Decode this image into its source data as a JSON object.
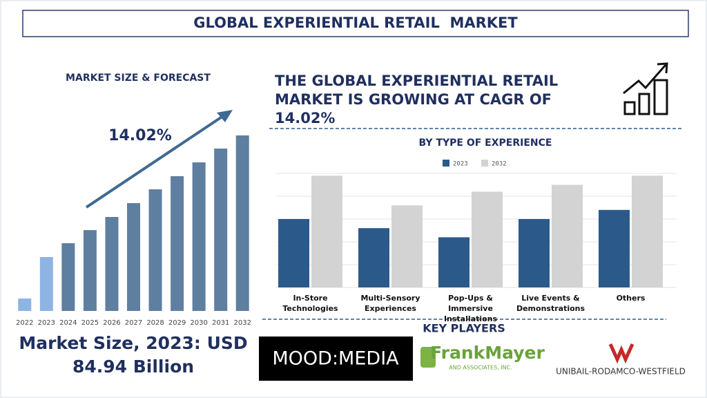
{
  "title": "GLOBAL EXPERIENTIAL RETAIL  MARKET",
  "headline": "THE GLOBAL EXPERIENTIAL RETAIL MARKET IS GROWING AT CAGR OF 14.02%",
  "market_size": "Market Size, 2023: USD 84.94 Billion",
  "key_players": {
    "title": "KEY PLAYERS",
    "logos": [
      {
        "name": "MOOD:MEDIA"
      },
      {
        "name": "FrankMayer",
        "subtitle": "AND ASSOCIATES, INC."
      },
      {
        "name": "UNIBAIL-RODAMCO-WESTFIELD"
      }
    ]
  },
  "chart_data": [
    {
      "type": "bar",
      "title": "MARKET SIZE & FORECAST",
      "annotation": "14.02%",
      "categories": [
        "2022",
        "2023",
        "2024",
        "2025",
        "2026",
        "2027",
        "2028",
        "2029",
        "2030",
        "2031",
        "2032"
      ],
      "values": [
        18,
        78,
        98,
        117,
        136,
        156,
        176,
        195,
        215,
        235,
        254
      ],
      "colors": [
        "#8db4e2",
        "#8db4e2",
        "#5f7fa0",
        "#5f7fa0",
        "#5f7fa0",
        "#5f7fa0",
        "#5f7fa0",
        "#5f7fa0",
        "#5f7fa0",
        "#5f7fa0",
        "#5f7fa0"
      ],
      "ylim": [
        0,
        260
      ]
    },
    {
      "type": "bar",
      "title": "BY TYPE OF EXPERIENCE",
      "categories": [
        "In-Store Technologies",
        "Multi-Sensory Experiences",
        "Pop-Ups & Immersive Installations",
        "Live Events & Demonstrations",
        "Others"
      ],
      "series": [
        {
          "name": "2023",
          "color": "#2b5a8a",
          "values": [
            3.0,
            2.6,
            2.2,
            3.0,
            3.4
          ]
        },
        {
          "name": "2032",
          "color": "#d3d3d3",
          "values": [
            4.9,
            3.6,
            4.2,
            4.5,
            4.9
          ]
        }
      ],
      "ylim": [
        0,
        5
      ],
      "yticks": [
        0,
        1,
        2,
        3,
        4,
        5
      ],
      "grid": true,
      "tick_labels": false
    }
  ]
}
